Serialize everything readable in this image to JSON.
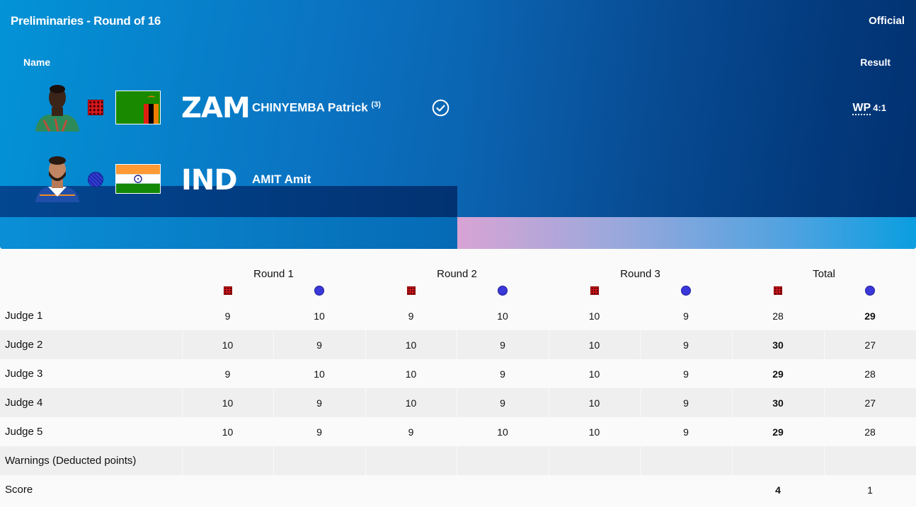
{
  "header": {
    "title": "Preliminaries - Round of 16",
    "status": "Official",
    "col_name": "Name",
    "col_result": "Result"
  },
  "athletes": [
    {
      "corner": "red",
      "noc": "ZAM",
      "name": "CHINYEMBA Patrick",
      "seed": "(3)",
      "winner": true,
      "result_code": "WP",
      "result_score": "4:1"
    },
    {
      "corner": "blue",
      "noc": "IND",
      "name": "AMIT Amit",
      "seed": "",
      "winner": false
    }
  ],
  "table": {
    "rounds": [
      "Round 1",
      "Round 2",
      "Round 3",
      "Total"
    ],
    "rows": [
      {
        "label": "Judge 1",
        "values": [
          "9",
          "10",
          "9",
          "10",
          "10",
          "9",
          "28",
          "29"
        ],
        "bold": [
          false,
          false,
          false,
          false,
          false,
          false,
          false,
          true
        ]
      },
      {
        "label": "Judge 2",
        "values": [
          "10",
          "9",
          "10",
          "9",
          "10",
          "9",
          "30",
          "27"
        ],
        "bold": [
          false,
          false,
          false,
          false,
          false,
          false,
          true,
          false
        ]
      },
      {
        "label": "Judge 3",
        "values": [
          "9",
          "10",
          "10",
          "9",
          "10",
          "9",
          "29",
          "28"
        ],
        "bold": [
          false,
          false,
          false,
          false,
          false,
          false,
          true,
          false
        ]
      },
      {
        "label": "Judge 4",
        "values": [
          "10",
          "9",
          "10",
          "9",
          "10",
          "9",
          "30",
          "27"
        ],
        "bold": [
          false,
          false,
          false,
          false,
          false,
          false,
          true,
          false
        ]
      },
      {
        "label": "Judge 5",
        "values": [
          "10",
          "9",
          "9",
          "10",
          "10",
          "9",
          "29",
          "28"
        ],
        "bold": [
          false,
          false,
          false,
          false,
          false,
          false,
          true,
          false
        ]
      },
      {
        "label": "Warnings (Deducted points)",
        "values": [
          "",
          "",
          "",
          "",
          "",
          "",
          "",
          ""
        ],
        "bold": [
          false,
          false,
          false,
          false,
          false,
          false,
          false,
          false
        ]
      },
      {
        "label": "Score",
        "values": [
          "",
          "",
          "",
          "",
          "",
          "",
          "4",
          "1"
        ],
        "bold": [
          false,
          false,
          false,
          false,
          false,
          false,
          true,
          false
        ]
      }
    ]
  },
  "colors": {
    "red_corner": "#d71920",
    "blue_corner": "#3a38d8",
    "banner_dark": "#013577",
    "banner_light": "#0393d6"
  }
}
